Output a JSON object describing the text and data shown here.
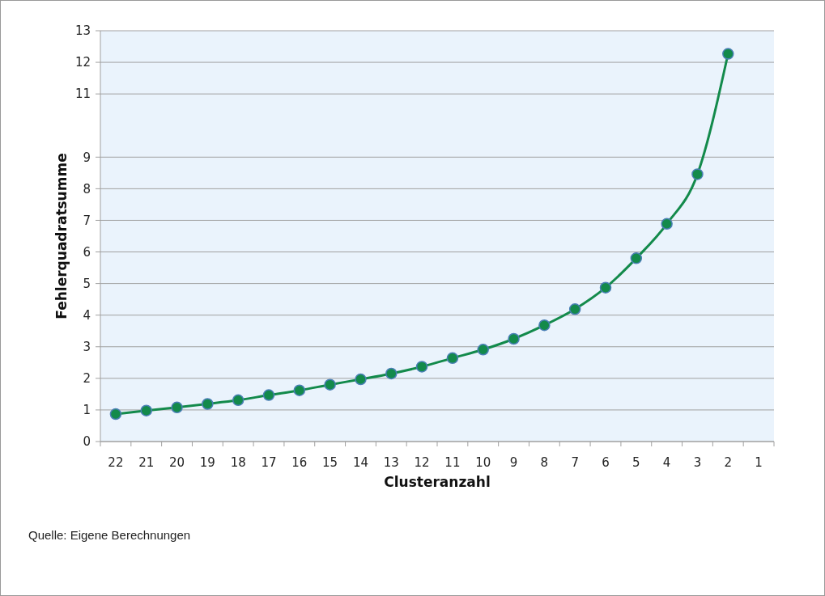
{
  "chart_data": {
    "type": "line",
    "xlabel": "Clusteranzahl",
    "ylabel": "Fehlerquadratsumme",
    "categories": [
      "22",
      "21",
      "20",
      "19",
      "18",
      "17",
      "16",
      "15",
      "14",
      "13",
      "12",
      "11",
      "10",
      "9",
      "8",
      "7",
      "6",
      "5",
      "4",
      "3",
      "2",
      "1"
    ],
    "series": [
      {
        "color": "#138a4b",
        "values": [
          0.87,
          0.98,
          1.08,
          1.19,
          1.31,
          1.47,
          1.62,
          1.8,
          1.97,
          2.15,
          2.37,
          2.64,
          2.91,
          3.25,
          3.68,
          4.19,
          4.87,
          5.8,
          6.89,
          8.46,
          12.27,
          null
        ]
      }
    ],
    "ylim": [
      0,
      13
    ],
    "yticks": [
      0,
      1,
      2,
      3,
      4,
      5,
      6,
      7,
      8,
      9,
      11,
      12,
      13
    ],
    "grid": "y",
    "marker": "circle",
    "line_style": "solid",
    "annotations": [
      "Quelle: Eigene Berechnungen"
    ]
  }
}
